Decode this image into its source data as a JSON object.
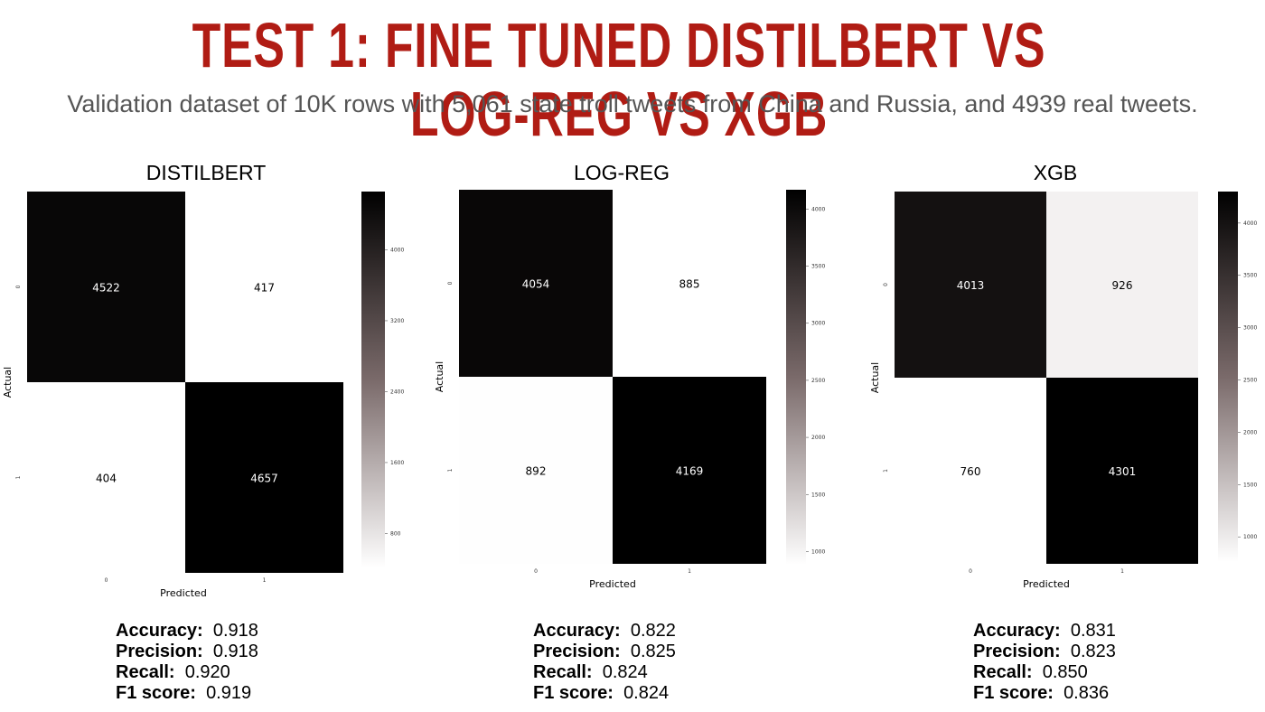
{
  "header": {
    "title": "TEST 1: FINE TUNED DISTILBERT VS LOG-REG VS XGB",
    "subtitle": "Validation dataset of 10K rows with 5,061 state troll tweets from China and Russia, and 4939 real tweets."
  },
  "chart_data": [
    {
      "type": "heatmap",
      "title": "DISTILBERT",
      "xlabel": "Predicted",
      "ylabel": "Actual",
      "x_ticks": [
        "0",
        "1"
      ],
      "y_ticks": [
        "0",
        "1"
      ],
      "matrix": [
        [
          4522,
          417
        ],
        [
          404,
          4657
        ]
      ],
      "colorbar": {
        "ticks": [
          800,
          1600,
          2400,
          3200,
          4000
        ],
        "range": [
          417,
          4657
        ]
      }
    },
    {
      "type": "heatmap",
      "title": "LOG-REG",
      "xlabel": "Predicted",
      "ylabel": "Actual",
      "x_ticks": [
        "0",
        "1"
      ],
      "y_ticks": [
        "0",
        "1"
      ],
      "matrix": [
        [
          4054,
          885
        ],
        [
          892,
          4169
        ]
      ],
      "colorbar": {
        "ticks": [
          1000,
          1500,
          2000,
          2500,
          3000,
          3500,
          4000
        ],
        "range": [
          885,
          4169
        ]
      }
    },
    {
      "type": "heatmap",
      "title": "XGB",
      "xlabel": "Predicted",
      "ylabel": "Actual",
      "x_ticks": [
        "0",
        "1"
      ],
      "y_ticks": [
        "0",
        "1"
      ],
      "matrix": [
        [
          4013,
          926
        ],
        [
          760,
          4301
        ]
      ],
      "colorbar": {
        "ticks": [
          1000,
          1500,
          2000,
          2500,
          3000,
          3500,
          4000
        ],
        "range": [
          760,
          4301
        ]
      }
    }
  ],
  "metrics": [
    {
      "accuracy_label": "Accuracy:",
      "accuracy": "0.918",
      "precision_label": "Precision:",
      "precision": "0.918",
      "recall_label": "Recall:",
      "recall": "0.920",
      "f1_label": "F1 score:",
      "f1": "0.919"
    },
    {
      "accuracy_label": "Accuracy:",
      "accuracy": "0.822",
      "precision_label": "Precision:",
      "precision": "0.825",
      "recall_label": "Recall:",
      "recall": "0.824",
      "f1_label": "F1 score:",
      "f1": "0.824"
    },
    {
      "accuracy_label": "Accuracy:",
      "accuracy": "0.831",
      "precision_label": "Precision:",
      "precision": "0.823",
      "recall_label": "Recall:",
      "recall": "0.850",
      "f1_label": "F1 score:",
      "f1": "0.836"
    }
  ],
  "colors": {
    "title": "#b01c14",
    "subtitle": "#555555",
    "cell_high": "#000000",
    "cell_mid": "#7a6a6a",
    "cell_low": "#ffffff"
  }
}
